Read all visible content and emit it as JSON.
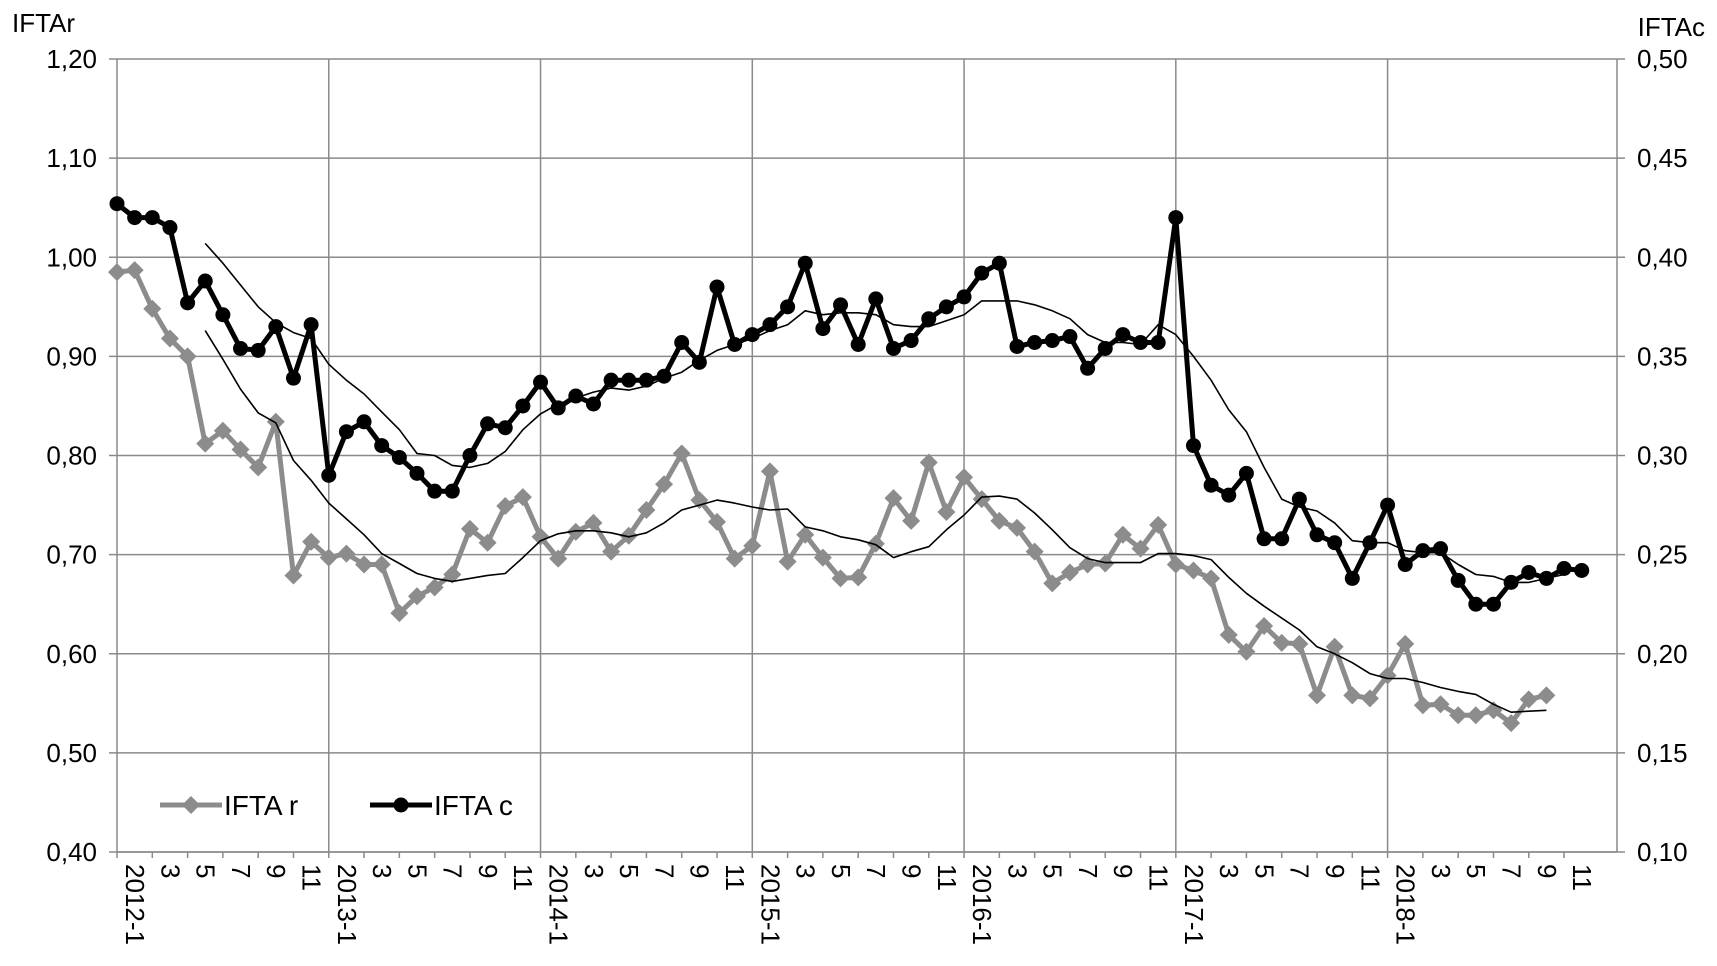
{
  "chart_data": {
    "type": "line",
    "left_axis_title": "IFTAr",
    "right_axis_title": "IFTAc",
    "y_left": {
      "min": 0.4,
      "max": 1.2,
      "ticks": [
        "0,40",
        "0,50",
        "0,60",
        "0,70",
        "0,80",
        "0,90",
        "1,00",
        "1,10",
        "1,20"
      ]
    },
    "y_right": {
      "min": 0.1,
      "max": 0.5,
      "ticks": [
        "0,10",
        "0,15",
        "0,20",
        "0,25",
        "0,30",
        "0,35",
        "0,40",
        "0,45",
        "0,50"
      ]
    },
    "x_tick_labels": [
      "2012-1",
      "3",
      "5",
      "7",
      "9",
      "11",
      "2013-1",
      "3",
      "5",
      "7",
      "9",
      "11",
      "2014-1",
      "3",
      "5",
      "7",
      "9",
      "11",
      "2015-1",
      "3",
      "5",
      "7",
      "9",
      "11",
      "2016-1",
      "3",
      "5",
      "7",
      "9",
      "11",
      "2017-1",
      "3",
      "5",
      "7",
      "9",
      "11",
      "2018-1",
      "3",
      "5",
      "7",
      "9",
      "11"
    ],
    "grid": true,
    "legend_position": "bottom-left",
    "series": [
      {
        "name": "IFTA r",
        "axis": "left",
        "color": "#8c8c8c",
        "marker": "diamond",
        "values": [
          0.985,
          0.987,
          0.948,
          0.918,
          0.9,
          0.812,
          0.825,
          0.806,
          0.788,
          0.834,
          0.679,
          0.713,
          0.697,
          0.701,
          0.69,
          0.69,
          0.641,
          0.658,
          0.667,
          0.68,
          0.726,
          0.712,
          0.749,
          0.758,
          0.718,
          0.696,
          0.723,
          0.732,
          0.703,
          0.719,
          0.745,
          0.771,
          0.802,
          0.755,
          0.733,
          0.696,
          0.709,
          0.784,
          0.693,
          0.72,
          0.697,
          0.676,
          0.677,
          0.711,
          0.757,
          0.734,
          0.793,
          0.743,
          0.778,
          0.756,
          0.734,
          0.727,
          0.703,
          0.671,
          0.682,
          0.69,
          0.691,
          0.72,
          0.706,
          0.73,
          0.69,
          0.684,
          0.676,
          0.619,
          0.602,
          0.628,
          0.611,
          0.61,
          0.558,
          0.607,
          0.558,
          0.555,
          0.578,
          0.61,
          0.548,
          0.549,
          0.538,
          0.538,
          0.543,
          0.53,
          0.554,
          0.558
        ]
      },
      {
        "name": "IFTA c",
        "axis": "right",
        "color": "#000000",
        "marker": "circle",
        "values": [
          0.427,
          0.42,
          0.42,
          0.415,
          0.377,
          0.388,
          0.371,
          0.354,
          0.353,
          0.365,
          0.339,
          0.366,
          0.29,
          0.312,
          0.317,
          0.305,
          0.299,
          0.291,
          0.282,
          0.282,
          0.3,
          0.316,
          0.314,
          0.325,
          0.337,
          0.324,
          0.33,
          0.326,
          0.338,
          0.338,
          0.338,
          0.34,
          0.357,
          0.347,
          0.385,
          0.356,
          0.361,
          0.366,
          0.375,
          0.397,
          0.364,
          0.376,
          0.356,
          0.379,
          0.354,
          0.358,
          0.369,
          0.375,
          0.38,
          0.392,
          0.397,
          0.355,
          0.357,
          0.358,
          0.36,
          0.344,
          0.354,
          0.361,
          0.357,
          0.357,
          0.42,
          0.305,
          0.285,
          0.28,
          0.291,
          0.258,
          0.258,
          0.278,
          0.26,
          0.256,
          0.238,
          0.256,
          0.275,
          0.245,
          0.252,
          0.253,
          0.237,
          0.225,
          0.225,
          0.236,
          0.241,
          0.238,
          0.243,
          0.242
        ]
      },
      {
        "name": "",
        "axis": "left",
        "color": "#000000",
        "marker": "none",
        "start_index": 5,
        "values": [
          0.926,
          0.897,
          0.867,
          0.843,
          0.833,
          0.795,
          0.775,
          0.752,
          0.736,
          0.72,
          0.701,
          0.691,
          0.681,
          0.676,
          0.673,
          0.676,
          0.679,
          0.681,
          0.697,
          0.714,
          0.721,
          0.724,
          0.724,
          0.722,
          0.718,
          0.722,
          0.732,
          0.745,
          0.75,
          0.755,
          0.752,
          0.748,
          0.745,
          0.746,
          0.728,
          0.724,
          0.718,
          0.715,
          0.71,
          0.697,
          0.703,
          0.708,
          0.725,
          0.74,
          0.758,
          0.759,
          0.756,
          0.742,
          0.725,
          0.707,
          0.696,
          0.692,
          0.692,
          0.692,
          0.701,
          0.701,
          0.699,
          0.695,
          0.677,
          0.661,
          0.648,
          0.636,
          0.624,
          0.607,
          0.6,
          0.591,
          0.58,
          0.575,
          0.575,
          0.571,
          0.566,
          0.562,
          0.559,
          0.549,
          0.541,
          0.542,
          0.543
        ]
      },
      {
        "name": "",
        "axis": "right",
        "color": "#000000",
        "marker": "none",
        "start_index": 5,
        "values": [
          0.407,
          0.397,
          0.386,
          0.375,
          0.367,
          0.362,
          0.359,
          0.346,
          0.338,
          0.331,
          0.322,
          0.313,
          0.301,
          0.3,
          0.295,
          0.294,
          0.296,
          0.302,
          0.313,
          0.321,
          0.326,
          0.329,
          0.332,
          0.334,
          0.333,
          0.335,
          0.339,
          0.342,
          0.348,
          0.353,
          0.356,
          0.359,
          0.363,
          0.366,
          0.373,
          0.371,
          0.372,
          0.372,
          0.371,
          0.366,
          0.365,
          0.365,
          0.368,
          0.371,
          0.378,
          0.378,
          0.378,
          0.376,
          0.373,
          0.369,
          0.361,
          0.357,
          0.357,
          0.356,
          0.366,
          0.361,
          0.35,
          0.338,
          0.323,
          0.312,
          0.294,
          0.278,
          0.274,
          0.272,
          0.266,
          0.257,
          0.256,
          0.256,
          0.252,
          0.251,
          0.251,
          0.245,
          0.24,
          0.239,
          0.236,
          0.236,
          0.238,
          0.24
        ]
      }
    ],
    "legend": [
      {
        "label": "IFTA r",
        "series_index": 0
      },
      {
        "label": "IFTA c",
        "series_index": 1
      }
    ]
  }
}
